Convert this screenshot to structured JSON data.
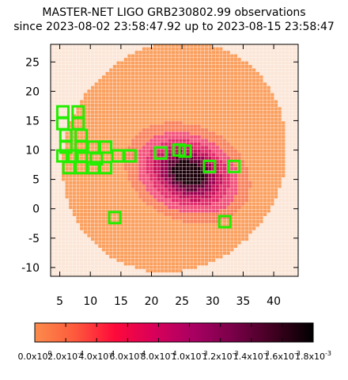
{
  "title_line1": "MASTER-NET LIGO GRB230802.99 observations",
  "title_line2": "since 2023-08-02 23:58:47.92 up to 2023-08-15 23:58:47",
  "chart_data": {
    "type": "heatmap",
    "xlim": [
      3.5,
      44
    ],
    "ylim": [
      -11.5,
      28
    ],
    "xticks": [
      5,
      10,
      15,
      20,
      25,
      30,
      35,
      40
    ],
    "yticks": [
      -10,
      -5,
      0,
      5,
      10,
      15,
      20,
      25
    ],
    "xtick_labels": [
      "5",
      "10",
      "15",
      "20",
      "25",
      "30",
      "35",
      "40"
    ],
    "ytick_labels": [
      "-10",
      "-5",
      "0",
      "5",
      "10",
      "15",
      "20",
      "25"
    ],
    "colorbar": {
      "range": [
        0,
        0.0018
      ],
      "tick_labels": [
        "0.0x10^0",
        "2.0x10^-4",
        "4.0x10^-4",
        "6.0x10^-4",
        "8.0x10^-4",
        "1.0x10^-3",
        "1.2x10^-3",
        "1.4x10^-3",
        "1.6x10^-3",
        "1.8x10^-3"
      ],
      "colors": [
        "#fb8c4c",
        "#fd5a3c",
        "#fe0a3a",
        "#d8005a",
        "#a80062",
        "#780048",
        "#400020",
        "#000000"
      ]
    },
    "probability_region": {
      "outer_ellipse": {
        "center": [
          23.5,
          8.5
        ],
        "rx": 18,
        "ry": 20,
        "rotation_deg": -25
      },
      "peak_center": [
        26,
        5.5
      ],
      "fill_color": "#fb9f5e"
    },
    "observation_fields": [
      {
        "x": 5.5,
        "y": 16.5
      },
      {
        "x": 8,
        "y": 16.5
      },
      {
        "x": 5.5,
        "y": 14.5
      },
      {
        "x": 8,
        "y": 14.5
      },
      {
        "x": 6,
        "y": 12.5
      },
      {
        "x": 8.5,
        "y": 12.5
      },
      {
        "x": 6,
        "y": 10.5
      },
      {
        "x": 8.5,
        "y": 10.5
      },
      {
        "x": 10.5,
        "y": 10.5
      },
      {
        "x": 12.5,
        "y": 10.5
      },
      {
        "x": 5.5,
        "y": 9
      },
      {
        "x": 7,
        "y": 9
      },
      {
        "x": 8.5,
        "y": 9
      },
      {
        "x": 11,
        "y": 8.5
      },
      {
        "x": 14.5,
        "y": 9
      },
      {
        "x": 16.5,
        "y": 9
      },
      {
        "x": 6.5,
        "y": 7
      },
      {
        "x": 8.5,
        "y": 7
      },
      {
        "x": 10.5,
        "y": 7
      },
      {
        "x": 12.5,
        "y": 7
      },
      {
        "x": 21.5,
        "y": 9.5
      },
      {
        "x": 24.5,
        "y": 10
      },
      {
        "x": 25.5,
        "y": 9.8
      },
      {
        "x": 29.5,
        "y": 7.2
      },
      {
        "x": 33.5,
        "y": 7.2
      },
      {
        "x": 14,
        "y": -1.5
      },
      {
        "x": 32,
        "y": -2.2
      }
    ],
    "field_color": "#22ee00"
  }
}
